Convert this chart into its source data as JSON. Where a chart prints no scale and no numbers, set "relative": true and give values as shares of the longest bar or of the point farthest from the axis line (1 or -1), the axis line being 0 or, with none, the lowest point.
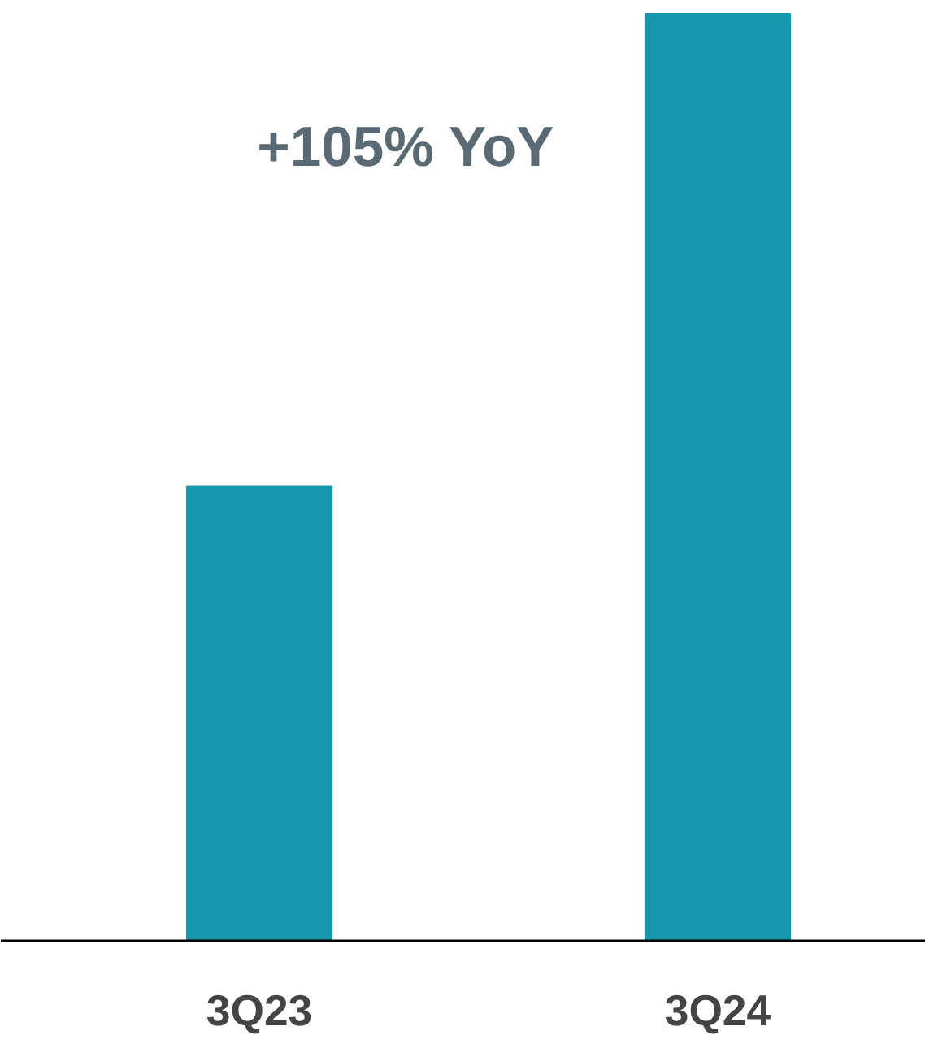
{
  "chart_data": {
    "type": "bar",
    "categories": [
      "3Q23",
      "3Q24"
    ],
    "values": [
      0.49,
      1
    ],
    "color": "#1797ad",
    "relative": true,
    "annotations": [
      "+105% YoY"
    ]
  }
}
